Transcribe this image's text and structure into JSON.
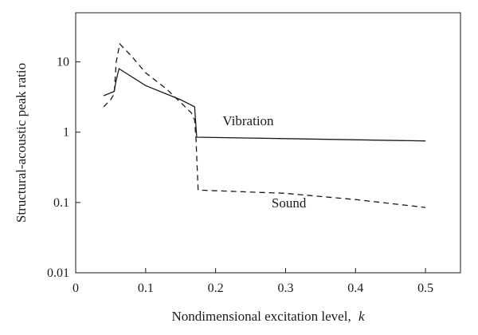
{
  "chart_data": {
    "type": "line",
    "title": "",
    "xlabel": "Nondimensional excitation level,",
    "xlabel_symbol": "k",
    "ylabel": "Structural-acoustic peak ratio",
    "xlim": [
      0,
      0.55
    ],
    "ylim": [
      0.01,
      50
    ],
    "yscale": "log",
    "grid": false,
    "x_ticks": [
      0,
      0.1,
      0.2,
      0.3,
      0.4,
      0.5
    ],
    "x_tick_labels": [
      "0",
      "0.1",
      "0.2",
      "0.3",
      "0.4",
      "0.5"
    ],
    "y_ticks": [
      0.01,
      0.1,
      1,
      10
    ],
    "y_tick_labels": [
      "0.01",
      "0.1",
      "1",
      "10"
    ],
    "series": [
      {
        "name": "Vibration",
        "style": "solid",
        "color": "#1a1a1a",
        "x": [
          0.04,
          0.055,
          0.058,
          0.062,
          0.1,
          0.15,
          0.17,
          0.173,
          0.5
        ],
        "y": [
          3.3,
          3.8,
          5.5,
          8.0,
          4.6,
          2.9,
          2.3,
          0.85,
          0.75
        ]
      },
      {
        "name": "Sound",
        "style": "dashed",
        "color": "#1a1a1a",
        "x": [
          0.04,
          0.05,
          0.055,
          0.058,
          0.063,
          0.08,
          0.1,
          0.13,
          0.165,
          0.17,
          0.172,
          0.175,
          0.3,
          0.4,
          0.5
        ],
        "y": [
          2.3,
          2.9,
          3.5,
          10,
          18,
          12,
          7.0,
          4.1,
          1.9,
          1.5,
          0.8,
          0.15,
          0.135,
          0.11,
          0.085
        ]
      }
    ],
    "annotations": [
      {
        "text": "Vibration",
        "x": 0.21,
        "y": 1.25
      },
      {
        "text": "Sound",
        "x": 0.28,
        "y": 0.085
      }
    ]
  }
}
